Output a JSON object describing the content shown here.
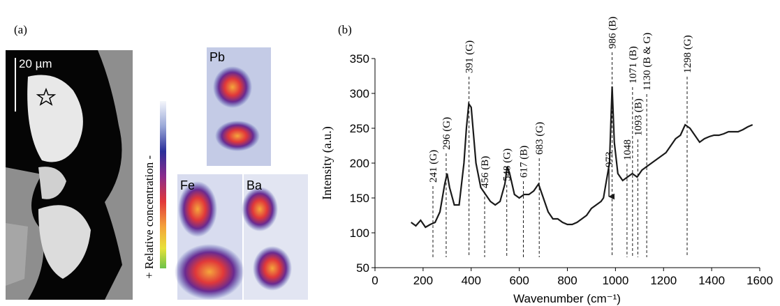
{
  "panel_a": {
    "label": "(a)",
    "scale_bar": "20 µm",
    "colorbar_label": "+ Relative concentration -",
    "maps": [
      "Pb",
      "Fe",
      "Ba"
    ]
  },
  "chart_data": {
    "type": "line",
    "panel_label": "(b)",
    "x_label": "Wavenumber (cm⁻¹)",
    "y_label": "Intensity (a.u.)",
    "x": [
      150,
      170,
      190,
      210,
      230,
      250,
      270,
      290,
      300,
      310,
      330,
      350,
      370,
      380,
      390,
      400,
      410,
      420,
      440,
      460,
      480,
      500,
      520,
      540,
      550,
      560,
      580,
      600,
      620,
      640,
      660,
      680,
      700,
      720,
      740,
      760,
      780,
      800,
      820,
      840,
      860,
      880,
      900,
      920,
      940,
      950,
      960,
      975,
      986,
      995,
      1010,
      1030,
      1050,
      1070,
      1090,
      1110,
      1130,
      1150,
      1170,
      1190,
      1210,
      1230,
      1250,
      1270,
      1290,
      1310,
      1330,
      1350,
      1370,
      1390,
      1410,
      1430,
      1450,
      1470,
      1490,
      1510,
      1530,
      1550,
      1570
    ],
    "series": [
      {
        "color": "#1a1a1a",
        "values": [
          115,
          110,
          118,
          108,
          112,
          115,
          130,
          170,
          185,
          165,
          140,
          140,
          200,
          250,
          285,
          280,
          240,
          200,
          165,
          155,
          145,
          140,
          145,
          170,
          195,
          185,
          155,
          150,
          155,
          155,
          160,
          170,
          150,
          130,
          120,
          120,
          115,
          112,
          112,
          115,
          120,
          125,
          135,
          140,
          145,
          150,
          170,
          200,
          310,
          230,
          185,
          175,
          180,
          185,
          180,
          190,
          195,
          200,
          205,
          210,
          215,
          225,
          235,
          240,
          255,
          250,
          240,
          230,
          235,
          238,
          240,
          240,
          242,
          245,
          245,
          245,
          248,
          252,
          255
        ]
      }
    ],
    "xlim": [
      0,
      1600
    ],
    "xticks": [
      0,
      200,
      400,
      600,
      800,
      1000,
      1200,
      1400,
      1600
    ],
    "ylim": [
      50,
      350
    ],
    "yticks": [
      50,
      100,
      150,
      200,
      250,
      300,
      350
    ],
    "annotations": [
      {
        "x": 241,
        "y": 172,
        "label": "241 (G)"
      },
      {
        "x": 296,
        "y": 219,
        "label": "296 (G)"
      },
      {
        "x": 391,
        "y": 329,
        "label": "391 (G)"
      },
      {
        "x": 456,
        "y": 164,
        "label": "456 (B)"
      },
      {
        "x": 548,
        "y": 174,
        "label": "548 (G)"
      },
      {
        "x": 617,
        "y": 179,
        "label": "617 (B)"
      },
      {
        "x": 683,
        "y": 212,
        "label": "683 (G)"
      },
      {
        "x": 973,
        "y": 194,
        "label": "973",
        "arrow": true
      },
      {
        "x": 986,
        "y": 364,
        "label": "986 (B)"
      },
      {
        "x": 1048,
        "y": 204,
        "label": "1048"
      },
      {
        "x": 1071,
        "y": 314,
        "label": "1071 (B)"
      },
      {
        "x": 1093,
        "y": 239,
        "label": "1093 (B)"
      },
      {
        "x": 1130,
        "y": 304,
        "label": "1130 (B & G)"
      },
      {
        "x": 1298,
        "y": 329,
        "label": "1298 (G)"
      }
    ]
  }
}
